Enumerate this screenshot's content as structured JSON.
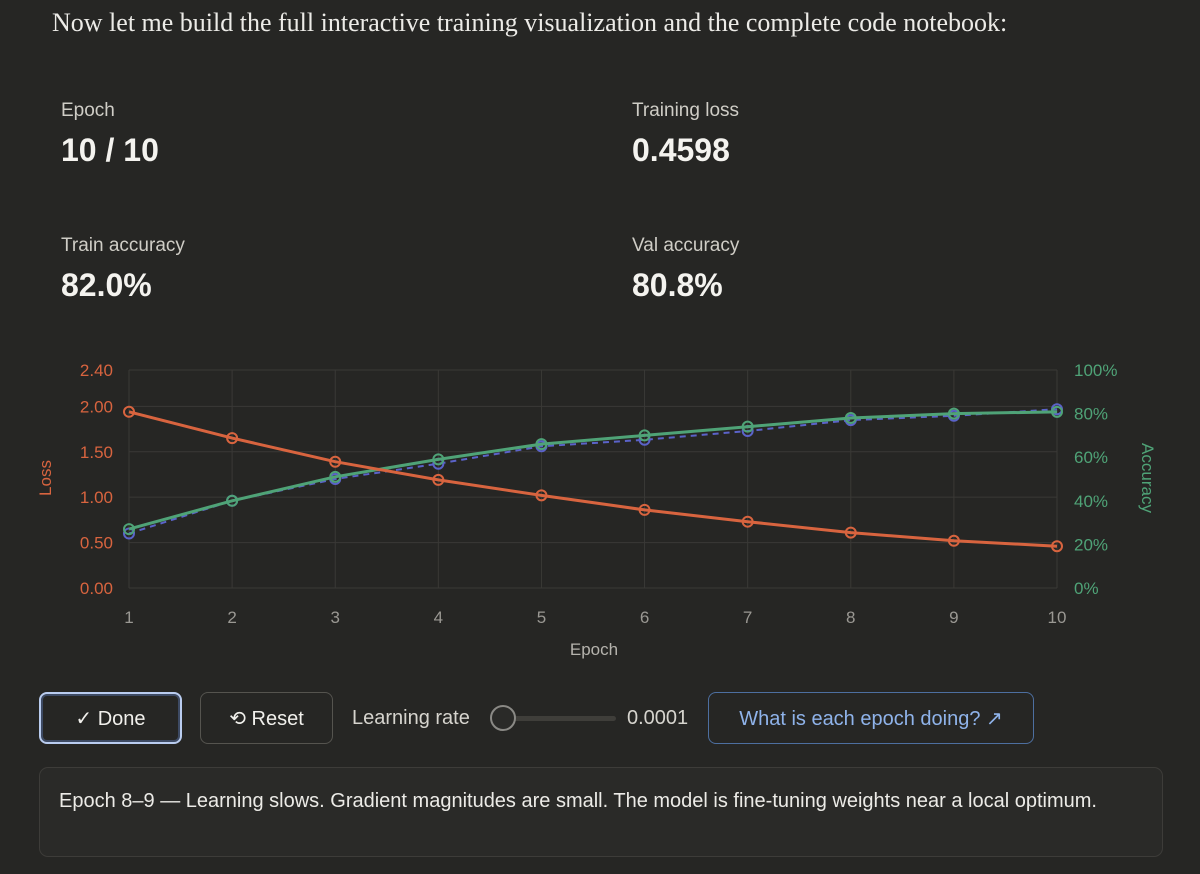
{
  "intro_text": "Now let me build the full interactive training visualization and the complete code notebook:",
  "metrics": {
    "epoch": {
      "label": "Epoch",
      "value": "10 / 10"
    },
    "training_loss": {
      "label": "Training loss",
      "value": "0.4598"
    },
    "train_accuracy": {
      "label": "Train accuracy",
      "value": "82.0%"
    },
    "val_accuracy": {
      "label": "Val accuracy",
      "value": "80.8%"
    }
  },
  "controls": {
    "done_label": "✓ Done",
    "reset_label": "⟲ Reset",
    "learning_rate_label": "Learning rate",
    "learning_rate_value": "0.0001",
    "learning_rate_slider_fraction": 0.0,
    "epoch_help_label": "What is each epoch doing? ↗"
  },
  "note_text": "Epoch 8–9 — Learning slows. Gradient magnitudes are small. The model is fine-tuning weights near a local optimum.",
  "colors": {
    "loss": "#d8643f",
    "train_acc": "#5b63c9",
    "val_acc": "#4fa377",
    "grid": "#3a3936",
    "tick": "#9a9893"
  },
  "chart_data": {
    "type": "line",
    "xlabel": "Epoch",
    "ylabel_left": "Loss",
    "ylabel_right": "Accuracy",
    "x": [
      1,
      2,
      3,
      4,
      5,
      6,
      7,
      8,
      9,
      10
    ],
    "x_tick_labels": [
      "1",
      "2",
      "3",
      "4",
      "5",
      "6",
      "7",
      "8",
      "9",
      "10"
    ],
    "ylim_left": [
      0,
      2.4
    ],
    "left_tick_labels": [
      "0.00",
      "0.50",
      "1.00",
      "1.50",
      "2.00",
      "2.40"
    ],
    "left_tick_values": [
      0,
      0.5,
      1.0,
      1.5,
      2.0,
      2.4
    ],
    "ylim_right": [
      0,
      100
    ],
    "right_tick_labels": [
      "0%",
      "20%",
      "40%",
      "60%",
      "80%",
      "100%"
    ],
    "right_tick_values": [
      0,
      20,
      40,
      60,
      80,
      100
    ],
    "grid": true,
    "series": [
      {
        "name": "Training loss",
        "axis": "left",
        "style": "solid",
        "values": [
          1.94,
          1.65,
          1.39,
          1.19,
          1.02,
          0.86,
          0.73,
          0.61,
          0.52,
          0.46
        ]
      },
      {
        "name": "Train accuracy",
        "axis": "right",
        "style": "dashed",
        "values": [
          25,
          40,
          50,
          57,
          65,
          68,
          72,
          77,
          79,
          82.0
        ]
      },
      {
        "name": "Val accuracy",
        "axis": "right",
        "style": "solid",
        "values": [
          27,
          40,
          51,
          59,
          66,
          70,
          74,
          78,
          80,
          80.8
        ]
      }
    ]
  }
}
